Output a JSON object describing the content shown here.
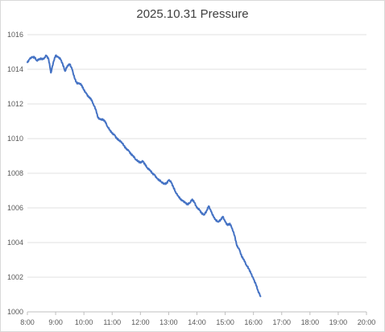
{
  "chart_data": {
    "type": "line",
    "title": "2025.10.31 Pressure",
    "xlabel": "",
    "ylabel": "",
    "x_range_hours": [
      8,
      20
    ],
    "ylim": [
      1000,
      1016
    ],
    "y_ticks": [
      "1000",
      "1002",
      "1004",
      "1006",
      "1008",
      "1010",
      "1012",
      "1014",
      "1016"
    ],
    "x_ticks": [
      "8:00",
      "9:00",
      "10:00",
      "11:00",
      "12:00",
      "13:00",
      "14:00",
      "15:00",
      "16:00",
      "17:00",
      "18:00",
      "19:00",
      "20:00"
    ],
    "grid": true,
    "legend": "none",
    "series": [
      {
        "color": "#4472c4",
        "points": [
          [
            "8:00",
            1014.4
          ],
          [
            "8:05",
            1014.6
          ],
          [
            "8:10",
            1014.7
          ],
          [
            "8:15",
            1014.7
          ],
          [
            "8:20",
            1014.5
          ],
          [
            "8:25",
            1014.6
          ],
          [
            "8:30",
            1014.6
          ],
          [
            "8:35",
            1014.6
          ],
          [
            "8:40",
            1014.8
          ],
          [
            "8:45",
            1014.6
          ],
          [
            "8:50",
            1013.8
          ],
          [
            "8:55",
            1014.4
          ],
          [
            "9:00",
            1014.8
          ],
          [
            "9:05",
            1014.7
          ],
          [
            "9:10",
            1014.6
          ],
          [
            "9:15",
            1014.3
          ],
          [
            "9:20",
            1013.9
          ],
          [
            "9:25",
            1014.2
          ],
          [
            "9:30",
            1014.3
          ],
          [
            "9:35",
            1014.0
          ],
          [
            "9:40",
            1013.5
          ],
          [
            "9:45",
            1013.2
          ],
          [
            "9:50",
            1013.2
          ],
          [
            "9:55",
            1013.1
          ],
          [
            "10:00",
            1012.8
          ],
          [
            "10:05",
            1012.6
          ],
          [
            "10:10",
            1012.4
          ],
          [
            "10:15",
            1012.3
          ],
          [
            "10:20",
            1012.0
          ],
          [
            "10:25",
            1011.7
          ],
          [
            "10:30",
            1011.2
          ],
          [
            "10:35",
            1011.1
          ],
          [
            "10:40",
            1011.1
          ],
          [
            "10:45",
            1011.0
          ],
          [
            "10:50",
            1010.7
          ],
          [
            "10:55",
            1010.5
          ],
          [
            "11:00",
            1010.3
          ],
          [
            "11:05",
            1010.2
          ],
          [
            "11:10",
            1010.0
          ],
          [
            "11:15",
            1009.9
          ],
          [
            "11:20",
            1009.8
          ],
          [
            "11:25",
            1009.6
          ],
          [
            "11:30",
            1009.4
          ],
          [
            "11:35",
            1009.3
          ],
          [
            "11:40",
            1009.1
          ],
          [
            "11:45",
            1009.0
          ],
          [
            "11:50",
            1008.8
          ],
          [
            "11:55",
            1008.7
          ],
          [
            "12:00",
            1008.6
          ],
          [
            "12:05",
            1008.7
          ],
          [
            "12:10",
            1008.5
          ],
          [
            "12:15",
            1008.3
          ],
          [
            "12:20",
            1008.2
          ],
          [
            "12:25",
            1008.0
          ],
          [
            "12:30",
            1007.9
          ],
          [
            "12:35",
            1007.7
          ],
          [
            "12:40",
            1007.6
          ],
          [
            "12:45",
            1007.5
          ],
          [
            "12:50",
            1007.4
          ],
          [
            "12:55",
            1007.4
          ],
          [
            "13:00",
            1007.6
          ],
          [
            "13:05",
            1007.5
          ],
          [
            "13:10",
            1007.2
          ],
          [
            "13:15",
            1006.9
          ],
          [
            "13:20",
            1006.7
          ],
          [
            "13:25",
            1006.5
          ],
          [
            "13:30",
            1006.4
          ],
          [
            "13:35",
            1006.3
          ],
          [
            "13:40",
            1006.2
          ],
          [
            "13:45",
            1006.3
          ],
          [
            "13:50",
            1006.5
          ],
          [
            "13:55",
            1006.3
          ],
          [
            "14:00",
            1006.0
          ],
          [
            "14:05",
            1005.9
          ],
          [
            "14:10",
            1005.7
          ],
          [
            "14:15",
            1005.6
          ],
          [
            "14:20",
            1005.8
          ],
          [
            "14:25",
            1006.1
          ],
          [
            "14:30",
            1005.8
          ],
          [
            "14:35",
            1005.5
          ],
          [
            "14:40",
            1005.3
          ],
          [
            "14:45",
            1005.2
          ],
          [
            "14:50",
            1005.3
          ],
          [
            "14:55",
            1005.5
          ],
          [
            "15:00",
            1005.2
          ],
          [
            "15:05",
            1005.0
          ],
          [
            "15:10",
            1005.1
          ],
          [
            "15:15",
            1004.8
          ],
          [
            "15:20",
            1004.4
          ],
          [
            "15:25",
            1003.8
          ],
          [
            "15:30",
            1003.6
          ],
          [
            "15:35",
            1003.2
          ],
          [
            "15:40",
            1003.0
          ],
          [
            "15:45",
            1002.7
          ],
          [
            "15:50",
            1002.5
          ],
          [
            "15:55",
            1002.2
          ],
          [
            "16:00",
            1001.9
          ],
          [
            "16:05",
            1001.6
          ],
          [
            "16:10",
            1001.2
          ],
          [
            "16:15",
            1000.9
          ]
        ]
      }
    ]
  }
}
